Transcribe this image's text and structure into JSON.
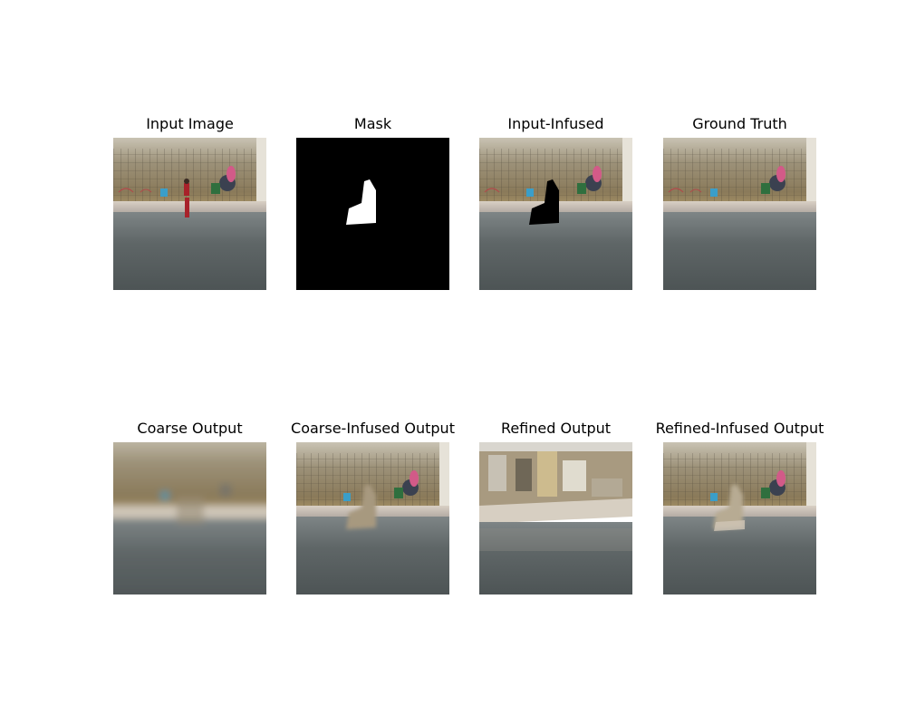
{
  "panels": [
    {
      "title": "Input Image"
    },
    {
      "title": "Mask"
    },
    {
      "title": "Input-Infused"
    },
    {
      "title": "Ground Truth"
    },
    {
      "title": "Coarse Output"
    },
    {
      "title": "Coarse-Infused Output"
    },
    {
      "title": "Refined Output"
    },
    {
      "title": "Refined-Infused Output"
    }
  ]
}
